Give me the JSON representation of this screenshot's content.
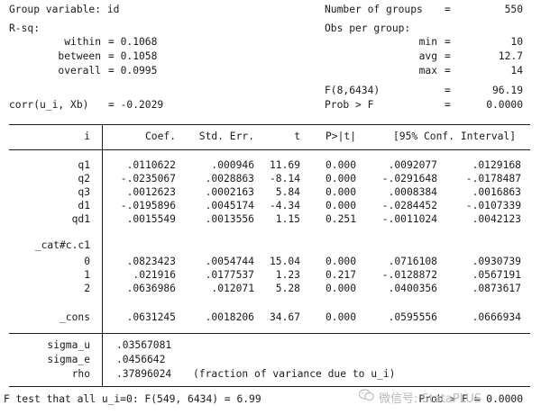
{
  "header": {
    "group_variable": "Group variable: id",
    "rsq_label": "R-sq:",
    "within_label": "within",
    "within_value": "= 0.1068",
    "between_label": "between",
    "between_value": "= 0.1058",
    "overall_label": "overall",
    "overall_value": "= 0.0995",
    "corr_label": "corr(u_i, Xb)",
    "corr_value": "= -0.2029",
    "n_groups_label": "Number of groups",
    "n_groups_eq": "=",
    "n_groups_value": "550",
    "obs_per_group_label": "Obs per group:",
    "min_label": "min",
    "min_eq": "=",
    "min_value": "10",
    "avg_label": "avg",
    "avg_eq": "=",
    "avg_value": "12.7",
    "max_label": "max",
    "max_eq": "=",
    "max_value": "14",
    "f_label": "F(8,6434)",
    "f_eq": "=",
    "f_value": "96.19",
    "probf_label": "Prob > F",
    "probf_eq": "=",
    "probf_value": "0.0000"
  },
  "table": {
    "columns": [
      "i",
      "Coef.",
      "Std. Err.",
      "t",
      "P>|t|",
      "[95% Conf. Interval]"
    ],
    "rows": [
      {
        "name": "q1",
        "coef": ".0110622",
        "se": ".000946",
        "t": "11.69",
        "p": "0.000",
        "lo": ".0092077",
        "hi": ".0129168"
      },
      {
        "name": "q2",
        "coef": "-.0235067",
        "se": ".0028863",
        "t": "-8.14",
        "p": "0.000",
        "lo": "-.0291648",
        "hi": "-.0178487"
      },
      {
        "name": "q3",
        "coef": ".0012623",
        "se": ".0002163",
        "t": "5.84",
        "p": "0.000",
        "lo": ".0008384",
        "hi": ".0016863"
      },
      {
        "name": "d1",
        "coef": "-.0195896",
        "se": ".0045174",
        "t": "-4.34",
        "p": "0.000",
        "lo": "-.0284452",
        "hi": "-.0107339"
      },
      {
        "name": "qd1",
        "coef": ".0015549",
        "se": ".0013556",
        "t": "1.15",
        "p": "0.251",
        "lo": "-.0011024",
        "hi": ".0042123"
      },
      {
        "name": "_cat#c.c1",
        "coef": "",
        "se": "",
        "t": "",
        "p": "",
        "lo": "",
        "hi": ""
      },
      {
        "name": "0",
        "coef": ".0823423",
        "se": ".0054744",
        "t": "15.04",
        "p": "0.000",
        "lo": ".0716108",
        "hi": ".0930739"
      },
      {
        "name": "1",
        "coef": ".021916",
        "se": ".0177537",
        "t": "1.23",
        "p": "0.217",
        "lo": "-.0128872",
        "hi": ".0567191"
      },
      {
        "name": "2",
        "coef": ".0636986",
        "se": ".012071",
        "t": "5.28",
        "p": "0.000",
        "lo": ".0400356",
        "hi": ".0873617"
      },
      {
        "name": "_cons",
        "coef": ".0631245",
        "se": ".0018206",
        "t": "34.67",
        "p": "0.000",
        "lo": ".0595556",
        "hi": ".0666934"
      }
    ],
    "sigma_u_label": "sigma_u",
    "sigma_u_value": ".03567081",
    "sigma_e_label": "sigma_e",
    "sigma_e_value": ".0456642",
    "rho_label": "rho",
    "rho_value": ".37896024",
    "rho_note": "(fraction of variance due to u_i)"
  },
  "footer": {
    "ftest_text": "F test that all u_i=0: F(549, 6434) = 6.99",
    "prob_text": "Prob > F = 0.0000"
  },
  "watermark": {
    "text": "微信号: StataPLUS",
    "icon": "wechat-icon"
  }
}
